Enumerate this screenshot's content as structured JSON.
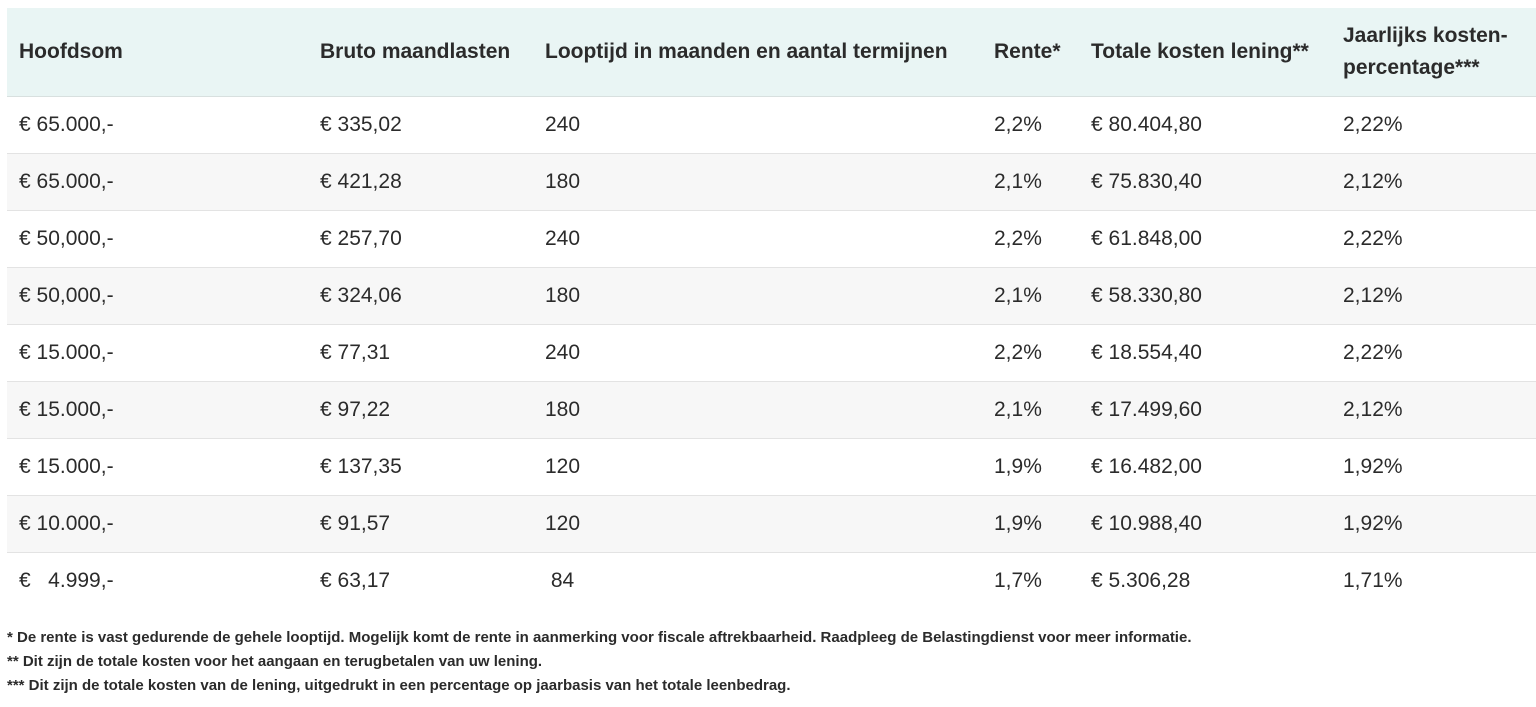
{
  "table": {
    "headers": [
      "Hoofdsom",
      "Bruto maandlasten",
      "Looptijd in maanden en aantal termijnen",
      "Rente*",
      "Totale kosten lening**",
      "Jaarlijks kosten-percentage***"
    ],
    "rows": [
      [
        "€ 65.000,-",
        "€ 335,02",
        "240",
        "2,2%",
        "€ 80.404,80",
        "2,22%"
      ],
      [
        "€ 65.000,-",
        "€ 421,28",
        "180",
        "2,1%",
        "€ 75.830,40",
        "2,12%"
      ],
      [
        "€ 50,000,-",
        "€ 257,70",
        "240",
        "2,2%",
        "€ 61.848,00",
        "2,22%"
      ],
      [
        "€ 50,000,-",
        "€ 324,06",
        "180",
        "2,1%",
        "€ 58.330,80",
        "2,12%"
      ],
      [
        "€ 15.000,-",
        "€ 77,31",
        "240",
        "2,2%",
        "€ 18.554,40",
        "2,22%"
      ],
      [
        "€ 15.000,-",
        "€ 97,22",
        "180",
        "2,1%",
        "€ 17.499,60",
        "2,12%"
      ],
      [
        "€ 15.000,-",
        "€ 137,35",
        "120",
        "1,9%",
        "€ 16.482,00",
        "1,92%"
      ],
      [
        "€ 10.000,-",
        "€ 91,57",
        "120",
        "1,9%",
        "€ 10.988,40",
        "1,92%"
      ],
      [
        "€   4.999,-",
        "€ 63,17",
        " 84",
        "1,7%",
        "€ 5.306,28",
        "1,71%"
      ]
    ]
  },
  "footnotes": [
    "* De rente is vast gedurende de gehele looptijd. Mogelijk komt de rente in aanmerking voor fiscale aftrekbaarheid. Raadpleeg de Belastingdienst voor meer informatie.",
    "** Dit zijn de totale kosten voor het aangaan en terugbetalen van uw lening.",
    "*** Dit zijn de totale kosten van de lening, uitgedrukt in een percentage op jaarbasis van het totale leenbedrag."
  ]
}
